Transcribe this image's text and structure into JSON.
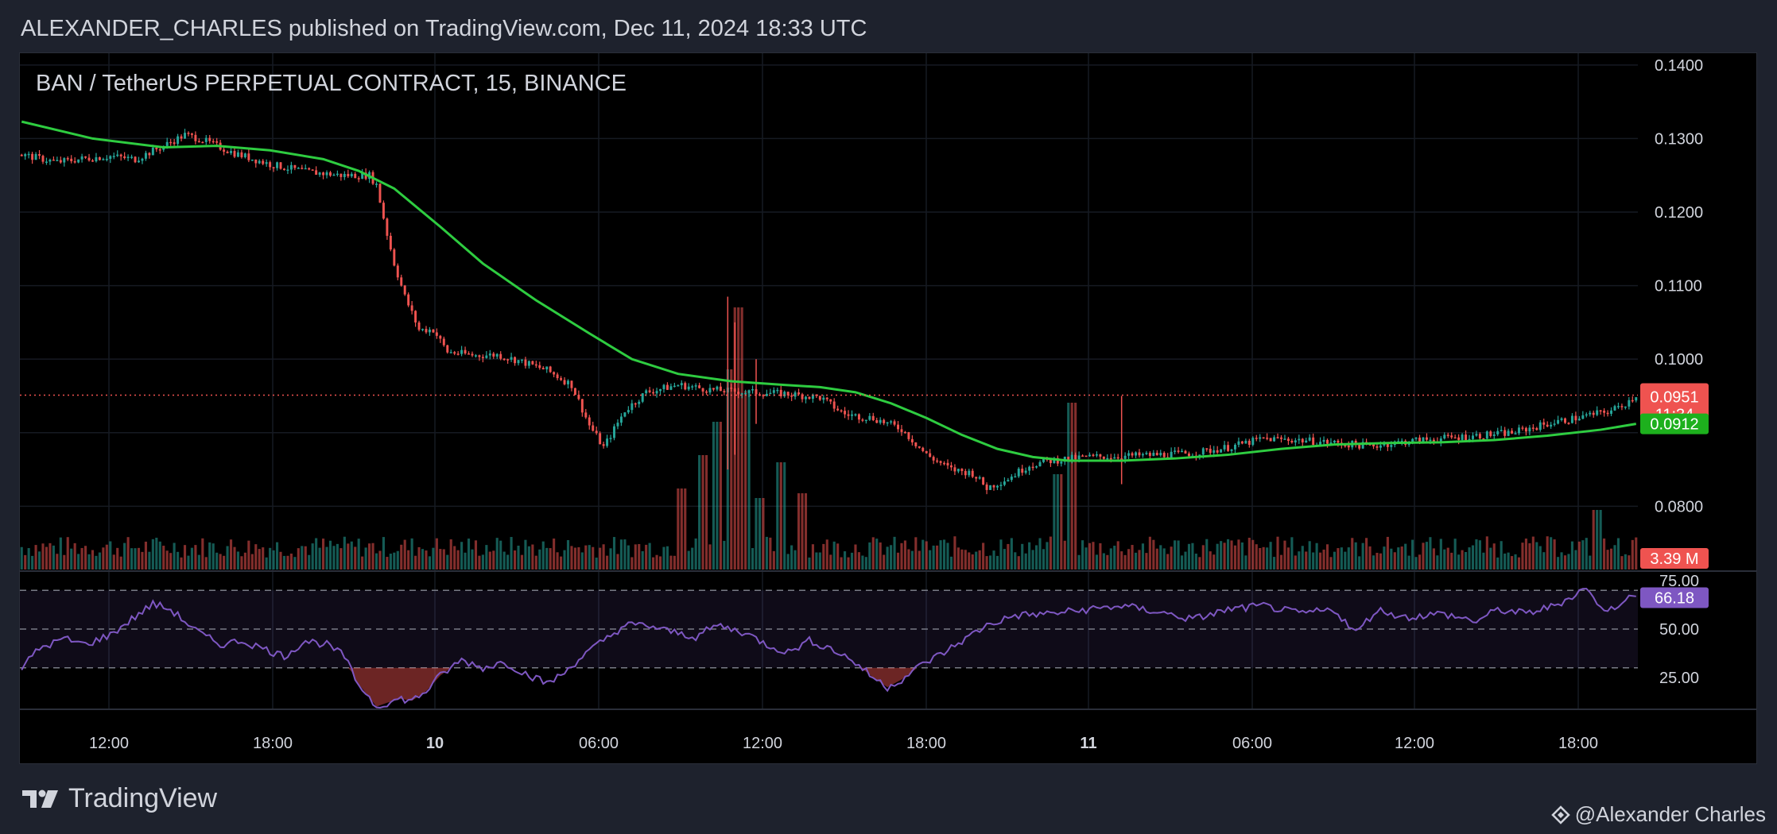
{
  "header": {
    "published_line": "ALEXANDER_CHARLES published on TradingView.com, Dec 11, 2024 18:33 UTC"
  },
  "footer": {
    "brand": "TradingView",
    "author": "@Alexander Charles"
  },
  "icons": {
    "brand_logo": "tradingview-logo-icon",
    "author_badge": "diamond-badge-icon"
  },
  "colors": {
    "up": "#26a69a",
    "down": "#ef5350",
    "ma": "#2ecc40",
    "rsi": "#7e57c2",
    "price_line": "#ef5350"
  },
  "chart_data": {
    "type": "candlestick",
    "title": "BAN / TetherUS PERPETUAL CONTRACT, 15, BINANCE",
    "price_axis": {
      "ticks": [
        "0.1400",
        "0.1300",
        "0.1200",
        "0.1100",
        "0.1000",
        "0.0800"
      ],
      "ylim": [
        0.0714,
        0.1416
      ]
    },
    "time_axis": {
      "ticks": [
        "12:00",
        "18:00",
        "10",
        "06:00",
        "12:00",
        "18:00",
        "11",
        "06:00",
        "12:00",
        "18:00"
      ]
    },
    "candle_count": 248,
    "price_path": [
      [
        0,
        0.1278
      ],
      [
        10,
        0.1268
      ],
      [
        18,
        0.1273
      ],
      [
        25,
        0.1276
      ],
      [
        32,
        0.1272
      ],
      [
        40,
        0.129
      ],
      [
        46,
        0.1305
      ],
      [
        50,
        0.13
      ],
      [
        60,
        0.128
      ],
      [
        70,
        0.1265
      ],
      [
        80,
        0.1255
      ],
      [
        90,
        0.125
      ],
      [
        98,
        0.125
      ],
      [
        100,
        0.1237
      ],
      [
        103,
        0.117
      ],
      [
        105,
        0.113
      ],
      [
        108,
        0.1085
      ],
      [
        112,
        0.104
      ],
      [
        116,
        0.104
      ],
      [
        120,
        0.101
      ],
      [
        128,
        0.1005
      ],
      [
        134,
        0.1006
      ],
      [
        140,
        0.0998
      ],
      [
        148,
        0.0985
      ],
      [
        155,
        0.0965
      ],
      [
        160,
        0.091
      ],
      [
        164,
        0.088
      ],
      [
        170,
        0.093
      ],
      [
        176,
        0.0955
      ],
      [
        185,
        0.0965
      ],
      [
        195,
        0.0958
      ],
      [
        205,
        0.0955
      ],
      [
        215,
        0.0953
      ],
      [
        225,
        0.0948
      ],
      [
        232,
        0.0925
      ],
      [
        240,
        0.092
      ],
      [
        248,
        0.0905
      ],
      [
        255,
        0.087
      ],
      [
        262,
        0.085
      ],
      [
        268,
        0.0845
      ],
      [
        272,
        0.0825
      ],
      [
        278,
        0.0838
      ],
      [
        284,
        0.0856
      ],
      [
        290,
        0.0862
      ],
      [
        300,
        0.0867
      ],
      [
        310,
        0.0868
      ],
      [
        320,
        0.087
      ],
      [
        330,
        0.0872
      ],
      [
        340,
        0.088
      ],
      [
        350,
        0.0892
      ],
      [
        360,
        0.089
      ],
      [
        370,
        0.0886
      ],
      [
        380,
        0.0882
      ],
      [
        390,
        0.0888
      ],
      [
        400,
        0.0892
      ],
      [
        410,
        0.0896
      ],
      [
        420,
        0.09
      ],
      [
        430,
        0.0912
      ],
      [
        440,
        0.0922
      ],
      [
        448,
        0.093
      ],
      [
        452,
        0.094
      ],
      [
        455,
        0.0951
      ]
    ],
    "series": [
      {
        "name": "MA",
        "points": [
          [
            0,
            0.1323
          ],
          [
            20,
            0.13
          ],
          [
            40,
            0.1288
          ],
          [
            55,
            0.129
          ],
          [
            70,
            0.1284
          ],
          [
            85,
            0.1272
          ],
          [
            95,
            0.1256
          ],
          [
            105,
            0.1232
          ],
          [
            118,
            0.118
          ],
          [
            130,
            0.113
          ],
          [
            145,
            0.108
          ],
          [
            160,
            0.1035
          ],
          [
            172,
            0.1
          ],
          [
            185,
            0.098
          ],
          [
            200,
            0.097
          ],
          [
            215,
            0.0965
          ],
          [
            225,
            0.0962
          ],
          [
            235,
            0.0955
          ],
          [
            245,
            0.094
          ],
          [
            255,
            0.092
          ],
          [
            265,
            0.0897
          ],
          [
            275,
            0.0878
          ],
          [
            285,
            0.0867
          ],
          [
            295,
            0.0862
          ],
          [
            310,
            0.0862
          ],
          [
            325,
            0.0865
          ],
          [
            340,
            0.087
          ],
          [
            355,
            0.0878
          ],
          [
            370,
            0.0884
          ],
          [
            385,
            0.0886
          ],
          [
            400,
            0.0887
          ],
          [
            415,
            0.089
          ],
          [
            430,
            0.0896
          ],
          [
            445,
            0.0904
          ],
          [
            455,
            0.0912
          ]
        ]
      }
    ],
    "last_price": {
      "price": "0.0951",
      "countdown": "11:34"
    },
    "ma_value": "0.0912",
    "volume": {
      "label": "3.39 M",
      "spikes": [
        [
          93,
          3.4
        ],
        [
          96,
          4.8
        ],
        [
          98,
          6.2
        ],
        [
          100,
          8.4
        ],
        [
          101,
          11.0
        ],
        [
          102,
          7.5
        ],
        [
          104,
          3.0
        ],
        [
          107,
          4.5
        ],
        [
          110,
          3.2
        ],
        [
          146,
          4.0
        ],
        [
          148,
          7.0
        ],
        [
          222,
          2.5
        ],
        [
          238,
          5.0
        ],
        [
          240,
          6.5
        ],
        [
          242,
          7.8
        ],
        [
          245,
          6.0
        ],
        [
          250,
          4.0
        ],
        [
          256,
          2.5
        ]
      ]
    },
    "rsi": {
      "value": "66.18",
      "ticks": [
        "75.00",
        "50.00",
        "25.00"
      ],
      "levels": [
        70,
        50,
        30
      ],
      "path": [
        [
          0,
          30
        ],
        [
          5,
          40
        ],
        [
          12,
          45
        ],
        [
          18,
          42
        ],
        [
          25,
          47
        ],
        [
          31,
          55
        ],
        [
          37,
          63
        ],
        [
          42,
          60
        ],
        [
          50,
          48
        ],
        [
          56,
          42
        ],
        [
          62,
          44
        ],
        [
          68,
          40
        ],
        [
          74,
          36
        ],
        [
          80,
          44
        ],
        [
          86,
          42
        ],
        [
          91,
          36
        ],
        [
          94,
          24
        ],
        [
          97,
          17
        ],
        [
          100,
          10
        ],
        [
          103,
          12
        ],
        [
          107,
          14
        ],
        [
          110,
          13
        ],
        [
          114,
          18
        ],
        [
          118,
          26
        ],
        [
          124,
          34
        ],
        [
          130,
          30
        ],
        [
          136,
          33
        ],
        [
          142,
          27
        ],
        [
          148,
          22
        ],
        [
          152,
          26
        ],
        [
          158,
          36
        ],
        [
          164,
          44
        ],
        [
          170,
          52
        ],
        [
          176,
          52
        ],
        [
          182,
          49
        ],
        [
          190,
          46
        ],
        [
          196,
          52
        ],
        [
          204,
          48
        ],
        [
          210,
          42
        ],
        [
          216,
          38
        ],
        [
          222,
          44
        ],
        [
          228,
          40
        ],
        [
          234,
          34
        ],
        [
          240,
          25
        ],
        [
          244,
          20
        ],
        [
          248,
          24
        ],
        [
          254,
          32
        ],
        [
          260,
          38
        ],
        [
          266,
          45
        ],
        [
          272,
          52
        ],
        [
          280,
          57
        ],
        [
          290,
          58
        ],
        [
          300,
          60
        ],
        [
          310,
          62
        ],
        [
          320,
          59
        ],
        [
          330,
          55
        ],
        [
          340,
          60
        ],
        [
          350,
          62
        ],
        [
          360,
          58
        ],
        [
          370,
          60
        ],
        [
          376,
          48
        ],
        [
          382,
          60
        ],
        [
          390,
          56
        ],
        [
          400,
          58
        ],
        [
          410,
          54
        ],
        [
          416,
          60
        ],
        [
          424,
          58
        ],
        [
          432,
          62
        ],
        [
          438,
          68
        ],
        [
          441,
          72
        ],
        [
          444,
          62
        ],
        [
          448,
          60
        ],
        [
          452,
          66
        ],
        [
          455,
          66.18
        ]
      ]
    }
  }
}
